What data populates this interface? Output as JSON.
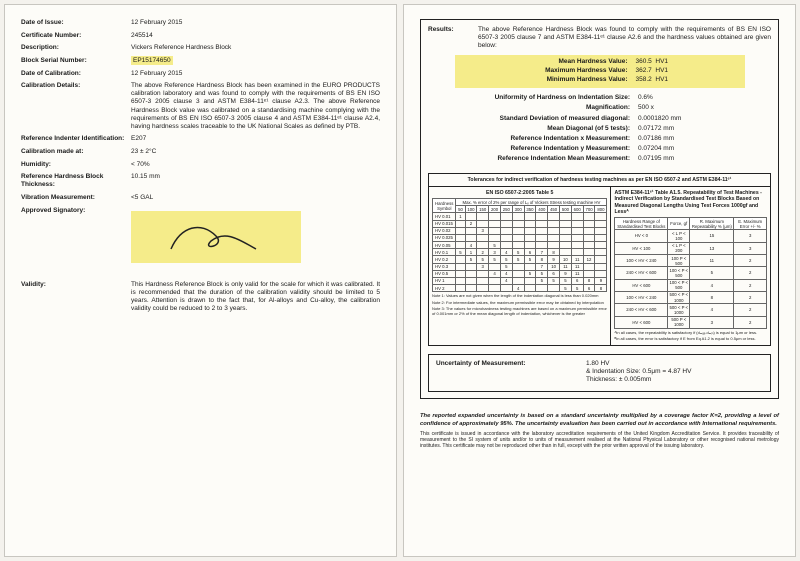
{
  "left": {
    "date_of_issue": {
      "label": "Date of Issue:",
      "value": "12 February 2015"
    },
    "cert_no": {
      "label": "Certificate Number:",
      "value": "245514"
    },
    "description": {
      "label": "Description:",
      "value": "Vickers Reference Hardness Block"
    },
    "serial": {
      "label": "Block Serial Number:",
      "value": "EP15174650"
    },
    "calib_date": {
      "label": "Date of Calibration:",
      "value": "12 February 2015"
    },
    "calib_details": {
      "label": "Calibration Details:",
      "value": "The above Reference Hardness Block has been examined in the EURO PRODUCTS calibration laboratory and was found to comply with the requirements of BS EN ISO 6507-3 2005 clause 3 and ASTM E384-11ᵉ¹ clause A2.3. The above Reference Hardness Block value was calibrated on a standardising machine complying with the requirements of BS EN ISO 6507-3 2005 clause 4 and ASTM E384-11ᵉ¹ clause A2.4, having hardness scales traceable to the UK National Scales as defined by PTB."
    },
    "indenter": {
      "label": "Reference Indenter Identification:",
      "value": "E207"
    },
    "calib_at": {
      "label": "Calibration made at:",
      "value": "23 ± 2°C"
    },
    "humidity": {
      "label": "Humidity:",
      "value": "< 70%"
    },
    "thickness": {
      "label": "Reference Hardness Block Thickness:",
      "value": "10.15 mm"
    },
    "vibration": {
      "label": "Vibration Measurement:",
      "value": "<5 GAL"
    },
    "signatory": {
      "label": "Approved Signatory:",
      "value": ""
    },
    "validity": {
      "label": "Validity:",
      "value": "This Hardness Reference Block is only valid for the scale for which it was calibrated. It is recommended that the duration of the calibration validity should be limited to 5 years. Attention is drawn to the fact that, for Al-alloys and Cu-alloy, the calibration validity could be reduced to 2 to 3 years."
    }
  },
  "right": {
    "results_label": "Results:",
    "results_text": "The above Reference Hardness Block was found to comply with the requirements of BS EN ISO 6507-3 2005 clause 7 and ASTM E384-11ᵉ¹ clause A2.6 and the hardness values obtained are given below:",
    "mean": {
      "label": "Mean Hardness Value:",
      "v": "360.5",
      "u": "HV1"
    },
    "max": {
      "label": "Maximum Hardness Value:",
      "v": "362.7",
      "u": "HV1"
    },
    "min": {
      "label": "Minimum Hardness Value:",
      "v": "358.2",
      "u": "HV1"
    },
    "uniformity": {
      "label": "Uniformity of Hardness on Indentation Size:",
      "v": "0.6%"
    },
    "mag": {
      "label": "Magnification:",
      "v": "500 x"
    },
    "stddev": {
      "label": "Standard Deviation of measured diagonal:",
      "v": "0.0001820 mm"
    },
    "mean_diag": {
      "label": "Mean Diagonal (of 5 tests):",
      "v": "0.07172 mm"
    },
    "ref_x": {
      "label": "Reference Indentation x Measurement:",
      "v": "0.07186 mm"
    },
    "ref_y": {
      "label": "Reference Indentation y Measurement:",
      "v": "0.07204 mm"
    },
    "ref_mean": {
      "label": "Reference Indentation Mean Measurement:",
      "v": "0.07195 mm"
    },
    "tol_title": "Tolerances for indirect verification of hardness testing machines as per EN ISO 6507-2 and ASTM E384-11ᵉ¹",
    "tol_left_title": "EN ISO 6507-2:2005 Table 5",
    "tol_left_sub": "Max. % error of 2% per range of Lᵥ of Vickers Stress testing machine HV",
    "tol_right_title": "ASTM E384-11ᵉ¹ Table A1.5. Repeatability of Test Machines - Indirect Verification by Standardised Test Blocks Based on Measured Diagonal Lengths Using Test Forces 1000gf and Lessᴬ",
    "iso_rows": [
      {
        "sym": "HV 0.01",
        "r": [
          "1",
          "",
          "",
          "",
          "",
          "",
          "",
          "",
          "",
          "",
          "",
          "",
          ""
        ]
      },
      {
        "sym": "HV 0.015",
        "r": [
          "",
          "2",
          "",
          "",
          "",
          "",
          "",
          "",
          "",
          "",
          "",
          "",
          ""
        ]
      },
      {
        "sym": "HV 0.02",
        "r": [
          "",
          "",
          "3",
          "",
          "",
          "",
          "",
          "",
          "",
          "",
          "",
          "",
          ""
        ]
      },
      {
        "sym": "HV 0.025",
        "r": [
          "",
          "",
          "",
          "",
          "",
          "",
          "",
          "",
          "",
          "",
          "",
          "",
          ""
        ]
      },
      {
        "sym": "HV 0.05",
        "r": [
          "",
          "4",
          "",
          "5",
          "",
          "",
          "",
          "",
          "",
          "",
          "",
          "",
          ""
        ]
      },
      {
        "sym": "HV 0.1",
        "r": [
          "5",
          "1",
          "2",
          "3",
          "4",
          "5",
          "6",
          "7",
          "8",
          "",
          "",
          "",
          ""
        ]
      },
      {
        "sym": "HV 0.2",
        "r": [
          "",
          "5",
          "5",
          "5",
          "5",
          "5",
          "5",
          "8",
          "9",
          "10",
          "11",
          "12",
          ""
        ]
      },
      {
        "sym": "HV 0.3",
        "r": [
          "",
          "",
          "3",
          "",
          "5",
          "",
          "",
          "7",
          "10",
          "11",
          "11",
          "",
          ""
        ]
      },
      {
        "sym": "HV 0.5",
        "r": [
          "",
          "",
          "",
          "4",
          "4",
          "",
          "5",
          "5",
          "6",
          "9",
          "11",
          "",
          ""
        ]
      },
      {
        "sym": "HV 1",
        "r": [
          "",
          "",
          "",
          "",
          "4",
          "",
          "",
          "5",
          "5",
          "5",
          "6",
          "8",
          "9"
        ]
      },
      {
        "sym": "HV 2",
        "r": [
          "",
          "",
          "",
          "",
          "",
          "4",
          "",
          "",
          "",
          "5",
          "5",
          "6",
          "8"
        ]
      }
    ],
    "iso_head": [
      "50",
      "100",
      "150",
      "200",
      "250",
      "300",
      "350",
      "400",
      "450",
      "500",
      "600",
      "700",
      "800"
    ],
    "astm_rows": [
      {
        "a": "HV < 0",
        "b": "< L P < 100",
        "c": "15",
        "d": "3"
      },
      {
        "a": "HV < 100",
        "b": "< L P < 200",
        "c": "13",
        "d": "3"
      },
      {
        "a": "100 < HV < 240",
        "b": "100 P < 500",
        "c": "11",
        "d": "2"
      },
      {
        "a": "240 < HV < 600",
        "b": "100 < P < 500",
        "c": "5",
        "d": "2"
      },
      {
        "a": "HV < 600",
        "b": "100 < P < 500",
        "c": "4",
        "d": "2"
      },
      {
        "a": "100 < HV < 240",
        "b": "500 < P < 1000",
        "c": "8",
        "d": "2"
      },
      {
        "a": "240 < HV < 600",
        "b": "500 < P < 1000",
        "c": "4",
        "d": "2"
      },
      {
        "a": "HV < 600",
        "b": "500 P < 1000",
        "c": "3",
        "d": "2"
      }
    ],
    "astm_head": [
      "Hardness Range of Standardised Test Blocks",
      "Force, gf",
      "R. Maximum Repeatability % (μm)",
      "E. Maximum Error +/- %"
    ],
    "note1": "Note 1: Values are not given when the length of the indentation diagonal is less than 0.020mm",
    "note2": "Note 2: For intermediate values, the maximum permissible error may be obtained by interpolation",
    "note3": "Note 3: The values for microhardness testing machines are based on a maximum permissible error of 0.001mm or 2% of the mean diagonal length of indentation, whichever is the greater",
    "astm_foot1": "ᴬIn all cases, the repeatability is satisfactory if (dₘₐₓ-dₘᵢₙ) is equal to 1μm or less.",
    "astm_foot2": "ᴮIn all cases, the error is satisfactory if E from Eq A1.2 is equal to 0.5μm or less.",
    "uom": {
      "label": "Uncertainty of Measurement:",
      "v1": "1.80 HV",
      "v2": "& Indentation Size: 0.5μm = 4.87 HV",
      "v3": "Thickness: ± 0.005mm"
    },
    "footer_bold": "The reported expanded uncertainty is based on a standard uncertainty multiplied by a coverage factor K=2, providing a level of confidence of approximately 95%. The uncertainty evaluation has been carried out in accordance with International requirements.",
    "footer_small": "This certificate is issued in accordance with the laboratory accreditation requirements of the United Kingdom Accreditation Service. It provides traceability of measurement to the SI system of units and/or to units of measurement realised at the National Physical Laboratory or other recognised national metrology institutes. This certificate may not be reproduced other than in full, except with the prior written approval of the issuing laboratory."
  },
  "colors": {
    "highlight": "#f5ec8a",
    "paper": "#fdfcf8",
    "bg": "#f4f2ed",
    "text": "#1a1a1a"
  }
}
